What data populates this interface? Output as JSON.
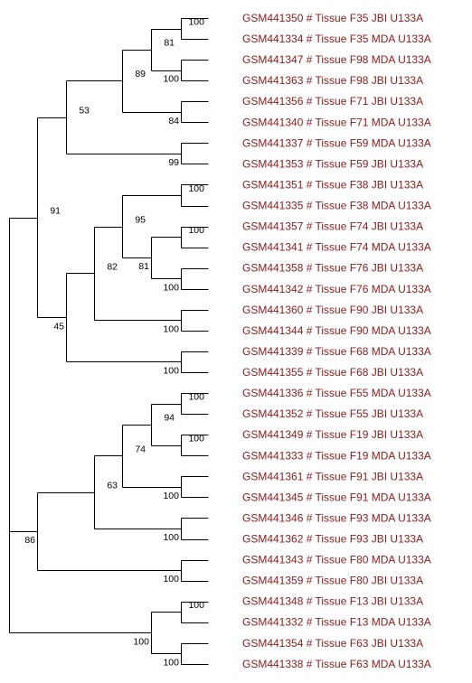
{
  "colors": {
    "leaf_text": "#8b1a1a",
    "line": "#000000",
    "support_text": "#000000",
    "background": "#ffffff"
  },
  "leaves": [
    "GSM441350 # Tissue F35 JBI U133A",
    "GSM441334 # Tissue F35 MDA U133A",
    "GSM441347 # Tissue F98 MDA U133A",
    "GSM441363 # Tissue F98 JBI U133A",
    "GSM441356 # Tissue F71 JBI U133A",
    "GSM441340 # Tissue F71 MDA U133A",
    "GSM441337 # Tissue F59 MDA U133A",
    "GSM441353 # Tissue F59 JBI U133A",
    "GSM441351 # Tissue F38 JBI U133A",
    "GSM441335 # Tissue F38 MDA U133A",
    "GSM441357 # Tissue F74 JBI U133A",
    "GSM441341 # Tissue F74 MDA U133A",
    "GSM441358 # Tissue F76 JBI U133A",
    "GSM441342 # Tissue F76 MDA U133A",
    "GSM441360 # Tissue F90 JBI U133A",
    "GSM441344 # Tissue F90 MDA U133A",
    "GSM441339 # Tissue F68 MDA U133A",
    "GSM441355 # Tissue F68 JBI U133A",
    "GSM441336 # Tissue F55 MDA U133A",
    "GSM441352 # Tissue F55 JBI U133A",
    "GSM441349 # Tissue F19 JBI U133A",
    "GSM441333 # Tissue F19 MDA U133A",
    "GSM441361 # Tissue F91 JBI U133A",
    "GSM441345 # Tissue F91 MDA U133A",
    "GSM441346 # Tissue F93 MDA U133A",
    "GSM441362 # Tissue F93 JBI U133A",
    "GSM441343 # Tissue F80 MDA U133A",
    "GSM441359 # Tissue F80 JBI U133A",
    "GSM441348 # Tissue F13 JBI U133A",
    "GSM441332 # Tissue F13 MDA U133A",
    "GSM441354 # Tissue F63 JBI U133A",
    "GSM441338 # Tissue F63 MDA U133A"
  ],
  "clades": [
    {
      "id": "c01",
      "children": [
        "L0",
        "L1"
      ],
      "support": "100"
    },
    {
      "id": "c02",
      "children": [
        "L2",
        "L3"
      ],
      "support": "100"
    },
    {
      "id": "c03",
      "children": [
        "c01",
        "c02"
      ],
      "support": "81"
    },
    {
      "id": "c04",
      "children": [
        "L4",
        "L5"
      ],
      "support": "84"
    },
    {
      "id": "c05",
      "children": [
        "c03",
        "c04"
      ],
      "support": "89"
    },
    {
      "id": "c06",
      "children": [
        "L6",
        "L7"
      ],
      "support": "99"
    },
    {
      "id": "c07",
      "children": [
        "c05",
        "c06"
      ],
      "support": "53"
    },
    {
      "id": "c08",
      "children": [
        "L8",
        "L9"
      ],
      "support": "100"
    },
    {
      "id": "c09",
      "children": [
        "L10",
        "L11"
      ],
      "support": "100"
    },
    {
      "id": "c10",
      "children": [
        "L12",
        "L13"
      ],
      "support": "100"
    },
    {
      "id": "c11",
      "children": [
        "c09",
        "c10"
      ],
      "support": "81"
    },
    {
      "id": "c12",
      "children": [
        "c08",
        "c11"
      ],
      "support": "95"
    },
    {
      "id": "c13",
      "children": [
        "L14",
        "L15"
      ],
      "support": "100"
    },
    {
      "id": "c14",
      "children": [
        "c12",
        "c13"
      ],
      "support": "82"
    },
    {
      "id": "c15",
      "children": [
        "L16",
        "L17"
      ],
      "support": "100"
    },
    {
      "id": "c16",
      "children": [
        "c14",
        "c15"
      ],
      "support": "45"
    },
    {
      "id": "c17",
      "children": [
        "c07",
        "c16"
      ],
      "support": "91"
    },
    {
      "id": "c18",
      "children": [
        "L18",
        "L19"
      ],
      "support": "100"
    },
    {
      "id": "c19",
      "children": [
        "L20",
        "L21"
      ],
      "support": "100"
    },
    {
      "id": "c20",
      "children": [
        "c18",
        "c19"
      ],
      "support": "94"
    },
    {
      "id": "c21",
      "children": [
        "L22",
        "L23"
      ],
      "support": "100"
    },
    {
      "id": "c22",
      "children": [
        "c20",
        "c21"
      ],
      "support": "74"
    },
    {
      "id": "c23",
      "children": [
        "L24",
        "L25"
      ],
      "support": "100"
    },
    {
      "id": "c24",
      "children": [
        "c22",
        "c23"
      ],
      "support": "63"
    },
    {
      "id": "c25",
      "children": [
        "L26",
        "L27"
      ],
      "support": "100"
    },
    {
      "id": "c26",
      "children": [
        "c24",
        "c25"
      ],
      "support": "86"
    },
    {
      "id": "c27",
      "children": [
        "c17",
        "c26"
      ],
      "support": ""
    },
    {
      "id": "c28",
      "children": [
        "L28",
        "L29"
      ],
      "support": "100"
    },
    {
      "id": "c29",
      "children": [
        "L30",
        "L31"
      ],
      "support": "100"
    },
    {
      "id": "c30",
      "children": [
        "c28",
        "c29"
      ],
      "support": "100"
    },
    {
      "id": "c31",
      "children": [
        "c27",
        "c30"
      ],
      "support": ""
    }
  ]
}
